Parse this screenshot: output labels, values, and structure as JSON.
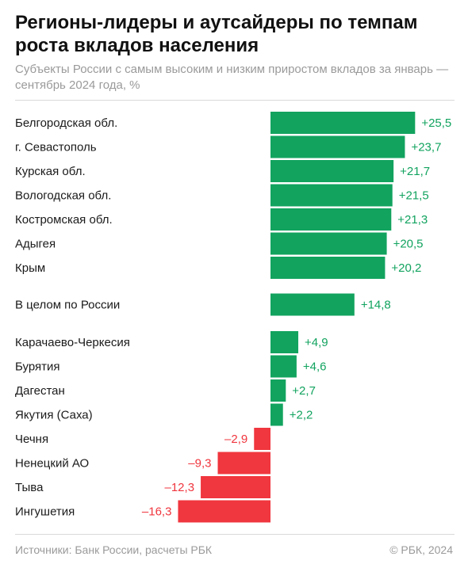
{
  "header": {
    "title": "Регионы-лидеры и аутсайдеры по темпам роста вкладов населения",
    "subtitle": "Субъекты России с самым высоким и низким приростом вкладов за январь — сентябрь 2024 года, %"
  },
  "footer": {
    "source": "Источники: Банк России, расчеты РБК",
    "copyright": "© РБК, 2024"
  },
  "colors": {
    "positive": "#12a35f",
    "negative": "#f0363e"
  },
  "chart_data": {
    "type": "bar",
    "orientation": "horizontal",
    "title": "Регионы-лидеры и аутсайдеры по темпам роста вкладов населения",
    "categories": [
      "Белгородская обл.",
      "г. Севастополь",
      "Курская обл.",
      "Вологодская обл.",
      "Костромская обл.",
      "Адыгея",
      "Крым",
      "В целом по России",
      "Карачаево-Черкесия",
      "Бурятия",
      "Дагестан",
      "Якутия (Саха)",
      "Чечня",
      "Ненецкий АО",
      "Тыва",
      "Ингушетия"
    ],
    "values": [
      25.5,
      23.7,
      21.7,
      21.5,
      21.3,
      20.5,
      20.2,
      14.8,
      4.9,
      4.6,
      2.7,
      2.2,
      -2.9,
      -9.3,
      -12.3,
      -16.3
    ],
    "value_labels": [
      "+25,5",
      "+23,7",
      "+21,7",
      "+21,5",
      "+21,3",
      "+20,5",
      "+20,2",
      "+14,8",
      "+4,9",
      "+4,6",
      "+2,7",
      "+2,2",
      "–2,9",
      "–9,3",
      "–12,3",
      "–16,3"
    ]
  }
}
